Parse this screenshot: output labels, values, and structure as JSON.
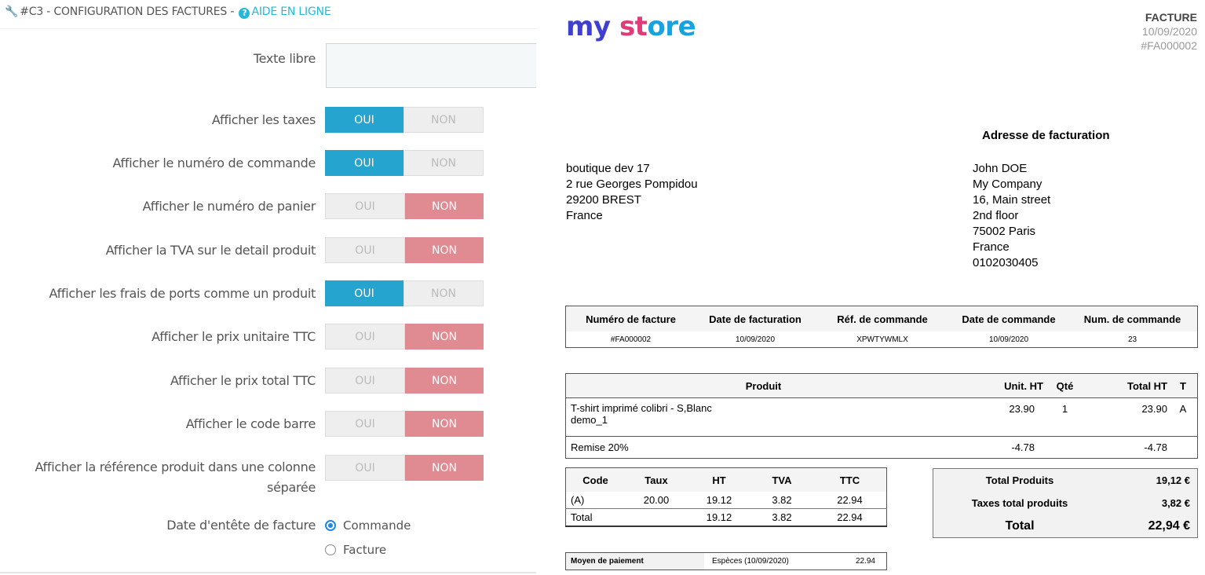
{
  "config": {
    "title_prefix": "#C3 - CONFIGURATION DES FACTURES - ",
    "help_link": "AIDE EN LIGNE",
    "textarea_label": "Texte libre",
    "yes_label": "OUI",
    "no_label": "NON",
    "options": [
      {
        "label": "Afficher les taxes",
        "value": "OUI"
      },
      {
        "label": "Afficher le numéro de commande",
        "value": "OUI"
      },
      {
        "label": "Afficher le numéro de panier",
        "value": "NON"
      },
      {
        "label": "Afficher la TVA sur le detail produit",
        "value": "NON"
      },
      {
        "label": "Afficher les frais de ports comme un produit",
        "value": "OUI"
      },
      {
        "label": "Afficher le prix unitaire TTC",
        "value": "NON"
      },
      {
        "label": "Afficher le prix total TTC",
        "value": "NON"
      },
      {
        "label": "Afficher le code barre",
        "value": "NON"
      },
      {
        "label": "Afficher la référence produit dans une colonne",
        "label_line2": "séparée",
        "value": "NON"
      }
    ],
    "date_header_label": "Date d'entête de facture",
    "date_header_options": [
      "Commande",
      "Facture"
    ],
    "date_header_selected": "Commande"
  },
  "invoice": {
    "logo": {
      "part1": "my",
      "part2": "st",
      "part3": "ore"
    },
    "doc_type": "FACTURE",
    "date": "10/09/2020",
    "number": "#FA000002",
    "billing_title": "Adresse de facturation",
    "shop_address": [
      "boutique dev 17",
      "2 rue Georges Pompidou",
      "29200 BREST",
      "France"
    ],
    "billing_address": [
      "John DOE",
      "My Company",
      "16, Main street",
      "2nd floor",
      "75002 Paris",
      "France",
      "0102030405"
    ],
    "details": {
      "headers": [
        "Numéro de facture",
        "Date de facturation",
        "Réf. de commande",
        "Date de commande",
        "Num. de commande"
      ],
      "values": [
        "#FA000002",
        "10/09/2020",
        "XPWTYWMLX",
        "10/09/2020",
        "23"
      ]
    },
    "products": {
      "headers": [
        "Produit",
        "Unit. HT",
        "Qté",
        "Total HT",
        "T"
      ],
      "item_name": "T-shirt imprimé colibri - S,Blanc",
      "item_ref": "demo_1",
      "item_unit": "23.90",
      "item_qty": "1",
      "item_total": "23.90",
      "item_tax": "A",
      "discount_label": "Remise 20%",
      "discount_unit": "-4.78",
      "discount_total": "-4.78"
    },
    "tax_table": {
      "headers": [
        "Code",
        "Taux",
        "HT",
        "TVA",
        "TTC"
      ],
      "row1": [
        "(A)",
        "20.00",
        "19.12",
        "3.82",
        "22.94"
      ],
      "row2": [
        "Total",
        "",
        "19.12",
        "3.82",
        "22.94"
      ]
    },
    "totals": {
      "products_label": "Total Produits",
      "products_value": "19,12 €",
      "taxes_label": "Taxes total produits",
      "taxes_value": "3,82 €",
      "total_label": "Total",
      "total_value": "22,94 €"
    },
    "payment": {
      "label": "Moyen de paiement",
      "method": "Espèces (10/09/2020)",
      "amount": "22.94"
    }
  }
}
